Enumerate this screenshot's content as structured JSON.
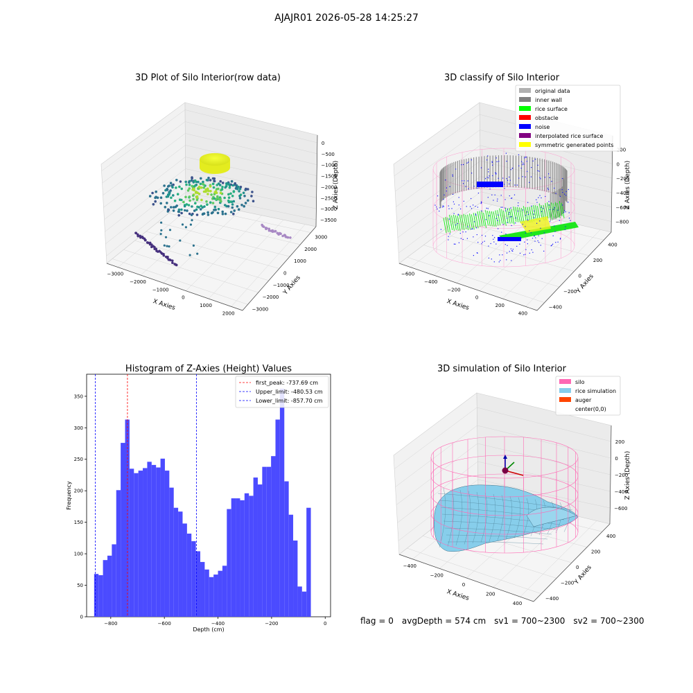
{
  "figure": {
    "suptitle": "AJAJR01 2026-05-28 14:25:27",
    "footer": {
      "flag": "flag = 0",
      "avg": "avgDepth = 574 cm",
      "sv1": "sv1 = 700~2300",
      "sv2": "sv2 = 700~2300"
    }
  },
  "colors": {
    "histogram_bar": "#4b4bff",
    "first_peak_line": "#ff0000",
    "limit_lines": "#0000ff",
    "silo_wire": "#ff69b4",
    "rice_surface": "#87ceeb"
  },
  "chart_data": [
    {
      "type": "scatter",
      "subtype": "3d",
      "title": "3D Plot of Silo Interior(row data)",
      "xlabel": "X Axies",
      "ylabel": "Y Axies",
      "zlabel": "Z Axies (Depth)",
      "x_ticks": [
        "−3000",
        "−2000",
        "−1000",
        "0",
        "1000",
        "2000"
      ],
      "y_ticks": [
        "−3000",
        "−2000",
        "−1000",
        "0",
        "1000",
        "2000",
        "3000"
      ],
      "z_ticks": [
        "0",
        "−500",
        "−1000",
        "−1500",
        "−2000",
        "−2500",
        "−3000",
        "−3500"
      ],
      "grid": true
    },
    {
      "type": "scatter",
      "subtype": "3d",
      "title": "3D classify of Silo Interior",
      "xlabel": "X Axies",
      "ylabel": "Y Axies",
      "zlabel": "Z Axies (Depth)",
      "x_ticks": [
        "−600",
        "−400",
        "−200",
        "0",
        "200",
        "400"
      ],
      "y_ticks": [
        "−400",
        "−200",
        "0",
        "200",
        "400"
      ],
      "z_ticks": [
        "200",
        "0",
        "−200",
        "−400",
        "−600",
        "−800"
      ],
      "legend": [
        {
          "label": "original data",
          "color": "#b0b0b0"
        },
        {
          "label": "inner wall",
          "color": "#808080"
        },
        {
          "label": "rice surface",
          "color": "#00ff00"
        },
        {
          "label": "obstacle",
          "color": "#ff0000"
        },
        {
          "label": "noise",
          "color": "#0000ff"
        },
        {
          "label": "interpolated rice surface",
          "color": "#800080"
        },
        {
          "label": "symmetric generated points",
          "color": "#ffff00"
        }
      ],
      "legend_position": "top-right",
      "grid": true
    },
    {
      "type": "bar",
      "subtype": "histogram",
      "title": "Histogram of Z-Axies (Height) Values",
      "xlabel": "Depth (cm)",
      "ylabel": "Frequency",
      "xlim": [
        -890,
        20
      ],
      "ylim": [
        0,
        385
      ],
      "bin_start": -862,
      "bin_width": 16.5,
      "values": [
        68,
        66,
        90,
        97,
        115,
        201,
        276,
        313,
        235,
        228,
        232,
        236,
        246,
        241,
        237,
        251,
        232,
        205,
        173,
        167,
        148,
        132,
        120,
        104,
        87,
        75,
        63,
        67,
        73,
        81,
        171,
        188,
        188,
        185,
        196,
        192,
        221,
        210,
        238,
        238,
        255,
        313,
        362,
        215,
        162,
        121,
        48,
        40,
        173
      ],
      "x_ticks": [
        -800,
        -600,
        -400,
        -200,
        0
      ],
      "x_tick_labels": [
        "−800",
        "−600",
        "−400",
        "−200",
        "0"
      ],
      "y_ticks": [
        0,
        50,
        100,
        150,
        200,
        250,
        300,
        350
      ],
      "y_tick_labels": [
        "0",
        "50",
        "100",
        "150",
        "200",
        "250",
        "300",
        "350"
      ],
      "lines": [
        {
          "label": "first_peak: -737.69 cm",
          "x": -737.69,
          "color": "#ff0000"
        },
        {
          "label": "Upper_limit: -480.53 cm",
          "x": -480.53,
          "color": "#0000ff"
        },
        {
          "label": "Lower_limit: -857.70 cm",
          "x": -857.7,
          "color": "#0000ff"
        }
      ],
      "legend_position": "top-right",
      "grid": false
    },
    {
      "type": "area",
      "subtype": "3d-surface",
      "title": "3D simulation of Silo Interior",
      "xlabel": "X Axies",
      "ylabel": "Y Axies",
      "zlabel": "Z Axies (Depth)",
      "x_ticks": [
        "−400",
        "−200",
        "0",
        "200",
        "400"
      ],
      "y_ticks": [
        "−400",
        "−200",
        "0",
        "200",
        "400"
      ],
      "z_ticks": [
        "200",
        "0",
        "−200",
        "−400",
        "−600"
      ],
      "legend": [
        {
          "label": "silo",
          "color": "#ff69b4"
        },
        {
          "label": "rice simulation",
          "color": "#87ceeb"
        },
        {
          "label": "auger",
          "color": "#ff4500"
        },
        {
          "label": "center(0,0)",
          "color": ""
        }
      ],
      "legend_position": "top-right",
      "grid": true
    }
  ]
}
